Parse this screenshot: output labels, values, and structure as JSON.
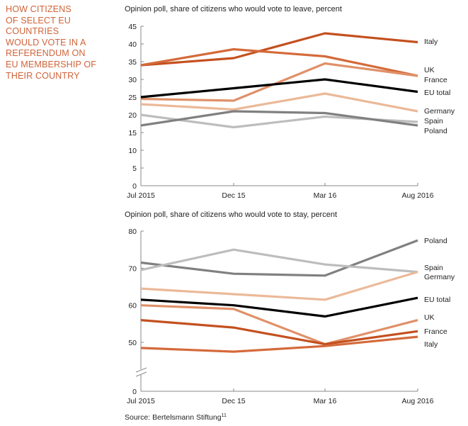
{
  "headline": {
    "lines": [
      "HOW CITIZENS",
      "OF SELECT EU",
      "COUNTRIES",
      "WOULD VOTE IN A",
      "REFERENDUM ON",
      "EU MEMBERSHIP OF",
      "THEIR COUNTRY"
    ],
    "color": "#d0643a"
  },
  "source": {
    "text": "Source: Bertelsmann Stiftung",
    "superscript": "11"
  },
  "chart_data": [
    {
      "type": "line",
      "title": "Opinion poll, share of citizens who would vote to leave, percent",
      "xlabel": "",
      "ylabel": "",
      "x": [
        "Jul 2015",
        "Dec 15",
        "Mar 16",
        "Aug 2016"
      ],
      "ylim": [
        0,
        45
      ],
      "yticks": [
        0,
        5,
        10,
        15,
        20,
        25,
        30,
        35,
        40,
        45
      ],
      "grid": false,
      "legend": "right-end labels",
      "series": [
        {
          "name": "Italy",
          "values": [
            34,
            36,
            43,
            40.5
          ],
          "color": "#c4501f"
        },
        {
          "name": "UK",
          "values": [
            34,
            38.5,
            36.5,
            31
          ],
          "color": "#d46a3a"
        },
        {
          "name": "France",
          "values": [
            24.5,
            24,
            34.5,
            31
          ],
          "color": "#e09068"
        },
        {
          "name": "EU total",
          "values": [
            25,
            27.5,
            30,
            26.5
          ],
          "color": "#000000"
        },
        {
          "name": "Germany",
          "values": [
            23,
            21.5,
            26,
            21
          ],
          "color": "#ebb998"
        },
        {
          "name": "Spain",
          "values": [
            20,
            16.5,
            19.5,
            18
          ],
          "color": "#bdbdbd"
        },
        {
          "name": "Poland",
          "values": [
            17,
            21,
            20.5,
            17
          ],
          "color": "#808080"
        }
      ],
      "end_labels": [
        {
          "text": "Italy",
          "series": "Italy"
        },
        {
          "text": "UK",
          "series": "UK"
        },
        {
          "text": "France",
          "series": "France"
        },
        {
          "text": "EU total",
          "series": "EU total"
        },
        {
          "text": "Germany",
          "series": "Germany"
        },
        {
          "text": "Spain",
          "series": "Spain"
        },
        {
          "text": "Poland",
          "series": "Poland"
        }
      ]
    },
    {
      "type": "line",
      "title": "Opinion poll, share of citizens who would vote to stay, percent",
      "xlabel": "",
      "ylabel": "",
      "x": [
        "Jul 2015",
        "Dec 15",
        "Mar 16",
        "Aug 2016"
      ],
      "ylim": [
        0,
        80
      ],
      "axis_break": [
        0,
        45
      ],
      "yticks": [
        0,
        50,
        60,
        70,
        80
      ],
      "grid": false,
      "legend": "right-end labels",
      "series": [
        {
          "name": "Poland",
          "values": [
            71.5,
            68.5,
            68,
            77.5
          ],
          "color": "#808080"
        },
        {
          "name": "Spain",
          "values": [
            69.5,
            75,
            71,
            69
          ],
          "color": "#bdbdbd"
        },
        {
          "name": "Germany",
          "values": [
            64.5,
            63,
            61.5,
            69
          ],
          "color": "#ebb998"
        },
        {
          "name": "EU total",
          "values": [
            61.5,
            60,
            57,
            62
          ],
          "color": "#000000"
        },
        {
          "name": "UK",
          "values": [
            60,
            59,
            49.5,
            56
          ],
          "color": "#e09068"
        },
        {
          "name": "France",
          "values": [
            56,
            54,
            49.5,
            53
          ],
          "color": "#c4501f"
        },
        {
          "name": "Italy",
          "values": [
            48.5,
            47.5,
            49,
            51.5
          ],
          "color": "#d46a3a"
        }
      ],
      "end_labels": [
        {
          "text": "Poland",
          "series": "Poland"
        },
        {
          "text": "Spain",
          "series": "Spain"
        },
        {
          "text": "Germany",
          "series": "Germany"
        },
        {
          "text": "EU total",
          "series": "EU total"
        },
        {
          "text": "UK",
          "series": "UK"
        },
        {
          "text": "France",
          "series": "France"
        },
        {
          "text": "Italy",
          "series": "Italy"
        }
      ]
    }
  ]
}
